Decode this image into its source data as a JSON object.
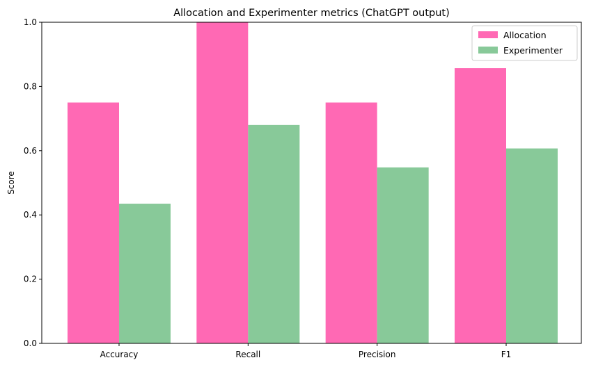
{
  "chart_data": {
    "type": "bar",
    "title": "Allocation and Experimenter metrics (ChatGPT output)",
    "xlabel": "",
    "ylabel": "Score",
    "ylim": [
      0,
      1.0
    ],
    "yticks": [
      0.0,
      0.2,
      0.4,
      0.6,
      0.8,
      1.0
    ],
    "ytick_labels": [
      "0.0",
      "0.2",
      "0.4",
      "0.6",
      "0.8",
      "1.0"
    ],
    "categories": [
      "Accuracy",
      "Recall",
      "Precision",
      "F1"
    ],
    "series": [
      {
        "name": "Allocation",
        "color": "#ff69b4",
        "values": [
          0.75,
          1.0,
          0.75,
          0.857
        ]
      },
      {
        "name": "Experimenter",
        "color": "#88c999",
        "values": [
          0.435,
          0.68,
          0.548,
          0.607
        ]
      }
    ],
    "grid": false,
    "legend_position": "top-right"
  }
}
